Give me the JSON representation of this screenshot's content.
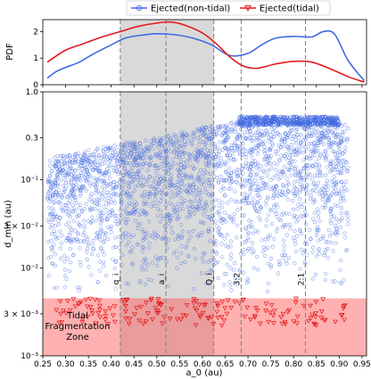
{
  "chart_data": [
    {
      "panel": "top",
      "type": "line",
      "ylabel": "PDF",
      "xlim": [
        0.25,
        0.96
      ],
      "ylim": [
        0,
        2.45
      ],
      "yticks": [
        0,
        1,
        2
      ],
      "yticklabels": [
        "0",
        "1",
        "2"
      ],
      "legend": {
        "placement": "top-center"
      },
      "series": [
        {
          "name": "Ejected(non-tidal)",
          "color": "#4169e1",
          "marker": "circle",
          "x": [
            0.26,
            0.28,
            0.3,
            0.33,
            0.36,
            0.4,
            0.43,
            0.46,
            0.5,
            0.54,
            0.58,
            0.62,
            0.66,
            0.7,
            0.73,
            0.76,
            0.8,
            0.84,
            0.865,
            0.89,
            0.92,
            0.955
          ],
          "y": [
            0.25,
            0.5,
            0.65,
            0.85,
            1.15,
            1.5,
            1.75,
            1.85,
            1.92,
            1.88,
            1.75,
            1.5,
            1.1,
            1.18,
            1.5,
            1.75,
            1.82,
            1.8,
            2.0,
            1.9,
            0.9,
            0.15
          ]
        },
        {
          "name": "Ejected(tidal)",
          "color": "#e31a1c",
          "marker": "triangle-down",
          "x": [
            0.26,
            0.3,
            0.34,
            0.38,
            0.42,
            0.46,
            0.5,
            0.53,
            0.56,
            0.6,
            0.63,
            0.66,
            0.69,
            0.72,
            0.76,
            0.8,
            0.84,
            0.88,
            0.92,
            0.955
          ],
          "y": [
            0.85,
            1.3,
            1.55,
            1.8,
            2.0,
            2.2,
            2.32,
            2.36,
            2.25,
            1.95,
            1.55,
            1.05,
            0.7,
            0.62,
            0.78,
            0.88,
            0.85,
            0.6,
            0.3,
            0.1
          ]
        }
      ]
    },
    {
      "panel": "bottom",
      "type": "scatter",
      "xlabel": "a_0 (au)",
      "ylabel": "d_min (au)",
      "yscale": "log",
      "xlim": [
        0.25,
        0.96
      ],
      "ylim": [
        0.001,
        1.0
      ],
      "xticks": [
        0.25,
        0.3,
        0.35,
        0.4,
        0.45,
        0.5,
        0.55,
        0.6,
        0.65,
        0.7,
        0.75,
        0.8,
        0.85,
        0.9,
        0.95
      ],
      "xticklabels": [
        "0.25",
        "0.30",
        "0.35",
        "0.40",
        "0.45",
        "0.50",
        "0.55",
        "0.60",
        "0.65",
        "0.70",
        "0.75",
        "0.80",
        "0.85",
        "0.90",
        "0.95"
      ],
      "yticks": [
        0.001,
        0.003,
        0.01,
        0.03,
        0.1,
        0.3,
        1.0
      ],
      "yticklabels": [
        "10⁻³",
        "3 × 10⁻³",
        "10⁻²",
        "3 × 10⁻²",
        "10⁻¹",
        "0.3",
        "1.0"
      ],
      "shaded_band_x": [
        0.42,
        0.625
      ],
      "tidal_zone_ymax": 0.0045,
      "tidal_zone_label": [
        "Tidal",
        "Fragmentation",
        "Zone"
      ],
      "vertical_lines": [
        {
          "x": 0.42,
          "label": "q_i"
        },
        {
          "x": 0.52,
          "label": "a_i"
        },
        {
          "x": 0.625,
          "label": "Q_i"
        },
        {
          "x": 0.685,
          "label": "3:2"
        },
        {
          "x": 0.826,
          "label": "2:1"
        }
      ],
      "series": [
        {
          "name": "Ejected(non-tidal)",
          "color": "#4169e1",
          "marker": "circle-open",
          "ymin": 0.0045,
          "ymax_approx": 0.55
        },
        {
          "name": "Ejected(tidal)",
          "color": "#e31a1c",
          "marker": "triangle-down-open",
          "yrange": [
            0.0022,
            0.0045
          ]
        }
      ]
    }
  ]
}
